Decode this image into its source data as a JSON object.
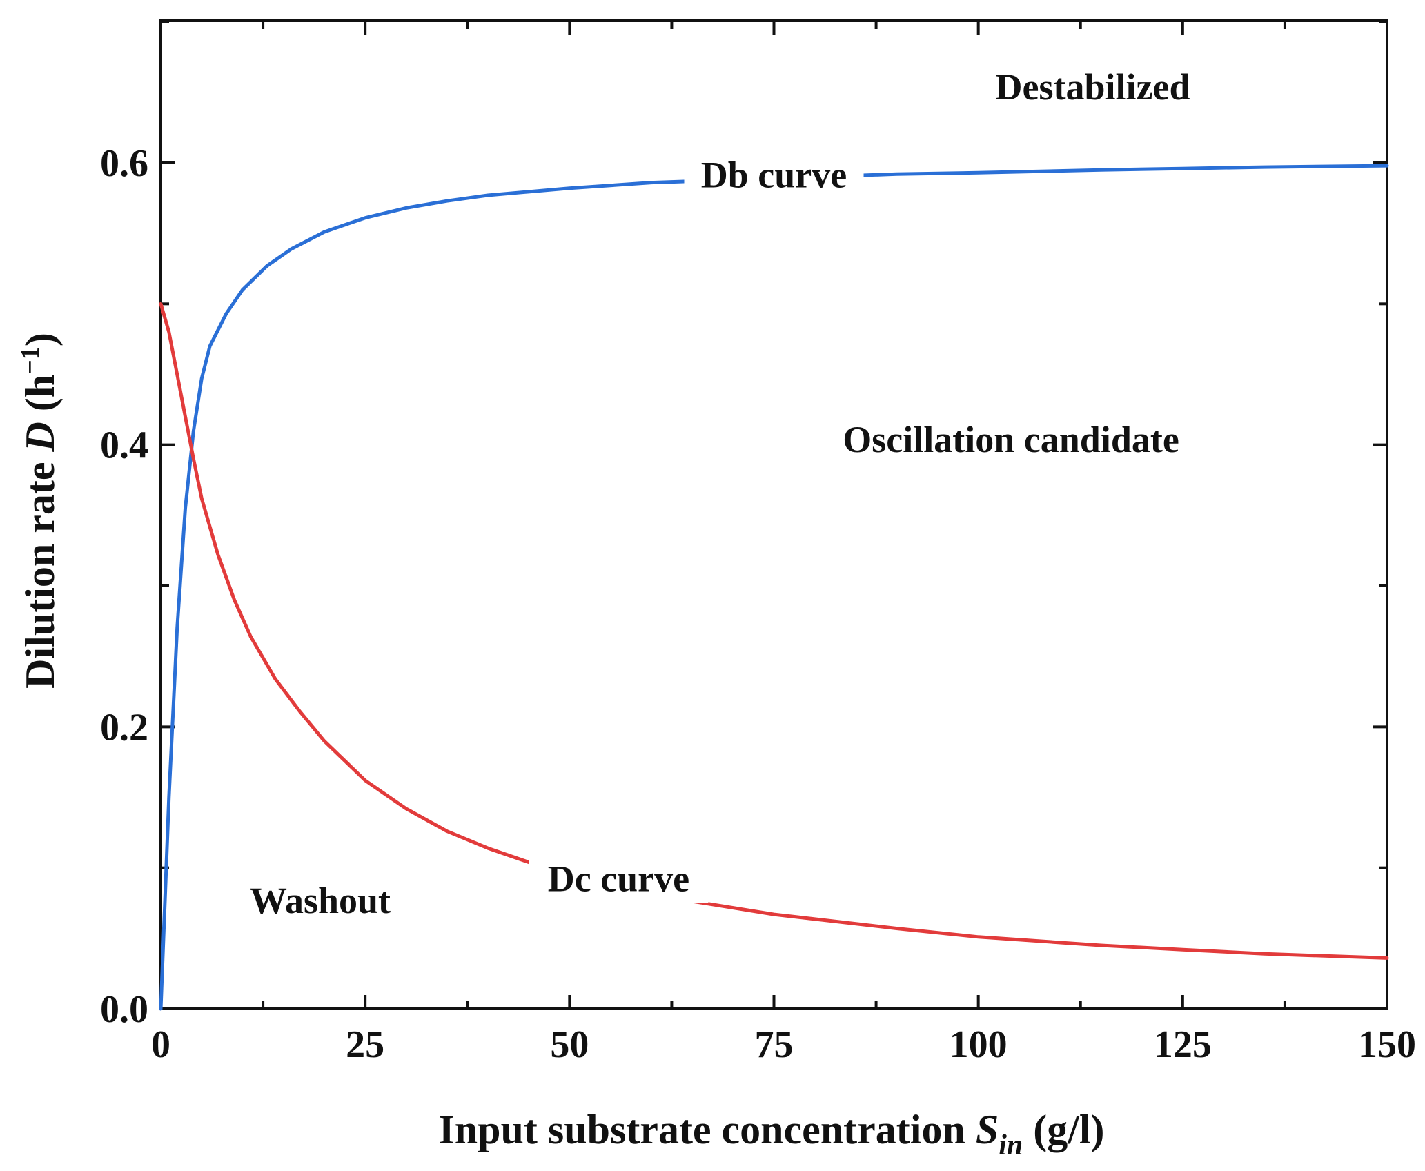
{
  "chart_data": {
    "type": "line",
    "xlabel": {
      "main": "Input substrate concentration ",
      "symbol": "S",
      "subscript": "in",
      "unit": " (g/l)"
    },
    "ylabel": {
      "main": "Dilution rate ",
      "symbol": "D",
      "unit_open": " (h",
      "exponent": "−1",
      "unit_close": ")"
    },
    "xlim": [
      0,
      150
    ],
    "ylim": [
      0,
      0.6
    ],
    "y_axis_top_approx": 0.7,
    "xticks": [
      "0",
      "25",
      "50",
      "75",
      "100",
      "125",
      "150"
    ],
    "yticks": [
      "0.0",
      "0.2",
      "0.4",
      "0.6"
    ],
    "grid": false,
    "series": [
      {
        "name": "Db curve",
        "color": "#2a6fd6",
        "x": [
          0,
          1,
          2,
          3,
          4,
          5,
          6,
          8,
          10,
          13,
          16,
          20,
          25,
          30,
          35,
          40,
          50,
          60,
          75,
          90,
          100,
          115,
          125,
          135,
          150
        ],
        "y": [
          0.0,
          0.15,
          0.27,
          0.355,
          0.41,
          0.447,
          0.47,
          0.493,
          0.51,
          0.527,
          0.539,
          0.551,
          0.561,
          0.568,
          0.573,
          0.577,
          0.582,
          0.586,
          0.589,
          0.592,
          0.593,
          0.595,
          0.596,
          0.597,
          0.598
        ]
      },
      {
        "name": "Dc curve",
        "color": "#e23b3b",
        "x": [
          0,
          1,
          2,
          3,
          4,
          5,
          7,
          9,
          11,
          14,
          17,
          20,
          25,
          30,
          35,
          40,
          50,
          60,
          75,
          90,
          100,
          115,
          125,
          135,
          150
        ],
        "y": [
          0.5,
          0.48,
          0.45,
          0.42,
          0.39,
          0.362,
          0.322,
          0.29,
          0.264,
          0.234,
          0.211,
          0.19,
          0.162,
          0.142,
          0.126,
          0.114,
          0.094,
          0.081,
          0.067,
          0.057,
          0.051,
          0.045,
          0.042,
          0.039,
          0.036
        ]
      }
    ],
    "annotations": [
      {
        "text": "Destabilized",
        "x": 114,
        "y": 0.645
      },
      {
        "text": "Oscillation candidate",
        "x": 104,
        "y": 0.395
      },
      {
        "text": "Washout",
        "x": 19.5,
        "y": 0.068
      }
    ],
    "curve_labels": [
      {
        "text": "Db curve",
        "x": 75,
        "y": 0.585
      },
      {
        "text": "Dc curve",
        "x": 56,
        "y": 0.086
      }
    ]
  }
}
